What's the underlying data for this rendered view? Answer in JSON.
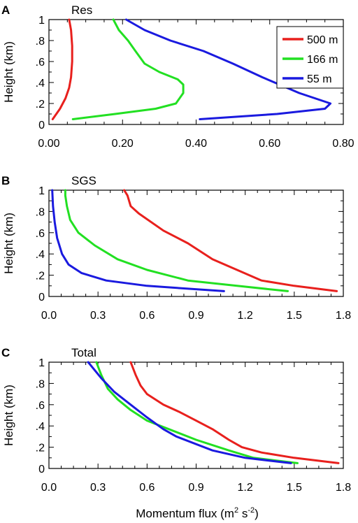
{
  "colors": {
    "500 m": "#e8201d",
    "166 m": "#22e022",
    "55 m": "#1a1adf"
  },
  "xlabel": "Momentum flux (m",
  "xlabel_sup1": "2",
  "xlabel_mid": " s",
  "xlabel_sup2": "-2",
  "xlabel_end": ")",
  "chart_data": [
    {
      "type": "line",
      "panel_letter": "A",
      "title": "Res",
      "ylabel": "Height (km)",
      "xlim": [
        0,
        0.8
      ],
      "ylim": [
        0,
        1
      ],
      "xticks": [
        "0.00",
        "0.20",
        "0.40",
        "0.60",
        "0.80"
      ],
      "xtick_values": [
        0,
        0.2,
        0.4,
        0.6,
        0.8
      ],
      "yticks": [
        "0",
        ".2",
        ".4",
        ".6",
        ".8",
        "1"
      ],
      "ytick_values": [
        0,
        0.2,
        0.4,
        0.6,
        0.8,
        1
      ],
      "legend": {
        "position": "top-right",
        "entries": [
          "500 m",
          "166 m",
          "55 m"
        ]
      },
      "series": [
        {
          "name": "500 m",
          "points": [
            [
              0.01,
              0.05
            ],
            [
              0.03,
              0.15
            ],
            [
              0.045,
              0.25
            ],
            [
              0.055,
              0.35
            ],
            [
              0.06,
              0.45
            ],
            [
              0.063,
              0.6
            ],
            [
              0.063,
              0.75
            ],
            [
              0.06,
              0.9
            ],
            [
              0.055,
              1.0
            ]
          ]
        },
        {
          "name": "166 m",
          "points": [
            [
              0.065,
              0.05
            ],
            [
              0.18,
              0.1
            ],
            [
              0.29,
              0.15
            ],
            [
              0.345,
              0.2
            ],
            [
              0.365,
              0.3
            ],
            [
              0.365,
              0.38
            ],
            [
              0.35,
              0.43
            ],
            [
              0.3,
              0.5
            ],
            [
              0.26,
              0.58
            ],
            [
              0.235,
              0.7
            ],
            [
              0.215,
              0.8
            ],
            [
              0.19,
              0.9
            ],
            [
              0.175,
              1.0
            ]
          ]
        },
        {
          "name": "55 m",
          "points": [
            [
              0.41,
              0.05
            ],
            [
              0.62,
              0.1
            ],
            [
              0.75,
              0.15
            ],
            [
              0.765,
              0.2
            ],
            [
              0.68,
              0.3
            ],
            [
              0.58,
              0.45
            ],
            [
              0.5,
              0.58
            ],
            [
              0.42,
              0.7
            ],
            [
              0.33,
              0.8
            ],
            [
              0.26,
              0.9
            ],
            [
              0.21,
              1.0
            ]
          ]
        }
      ]
    },
    {
      "type": "line",
      "panel_letter": "B",
      "title": "SGS",
      "ylabel": "Height (km)",
      "xlim": [
        0,
        1.8
      ],
      "ylim": [
        0,
        1
      ],
      "xticks": [
        "0.0",
        "0.3",
        "0.6",
        "0.9",
        "1.2",
        "1.5",
        "1.8"
      ],
      "xtick_values": [
        0,
        0.3,
        0.6,
        0.9,
        1.2,
        1.5,
        1.8
      ],
      "yticks": [
        "0",
        ".2",
        ".4",
        ".6",
        ".8",
        "1"
      ],
      "ytick_values": [
        0,
        0.2,
        0.4,
        0.6,
        0.8,
        1
      ],
      "series": [
        {
          "name": "500 m",
          "points": [
            [
              1.76,
              0.05
            ],
            [
              1.5,
              0.1
            ],
            [
              1.3,
              0.15
            ],
            [
              1.15,
              0.25
            ],
            [
              1.0,
              0.35
            ],
            [
              0.85,
              0.5
            ],
            [
              0.7,
              0.62
            ],
            [
              0.55,
              0.78
            ],
            [
              0.5,
              0.85
            ],
            [
              0.48,
              0.95
            ],
            [
              0.46,
              1.0
            ]
          ]
        },
        {
          "name": "166 m",
          "points": [
            [
              1.46,
              0.05
            ],
            [
              1.15,
              0.1
            ],
            [
              0.85,
              0.15
            ],
            [
              0.6,
              0.25
            ],
            [
              0.42,
              0.35
            ],
            [
              0.28,
              0.48
            ],
            [
              0.18,
              0.6
            ],
            [
              0.13,
              0.72
            ],
            [
              0.11,
              0.85
            ],
            [
              0.1,
              0.95
            ],
            [
              0.1,
              1.0
            ]
          ]
        },
        {
          "name": "55 m",
          "points": [
            [
              1.07,
              0.05
            ],
            [
              0.6,
              0.1
            ],
            [
              0.35,
              0.15
            ],
            [
              0.2,
              0.22
            ],
            [
              0.12,
              0.3
            ],
            [
              0.08,
              0.4
            ],
            [
              0.05,
              0.55
            ],
            [
              0.035,
              0.7
            ],
            [
              0.025,
              0.85
            ],
            [
              0.02,
              1.0
            ]
          ]
        }
      ]
    },
    {
      "type": "line",
      "panel_letter": "C",
      "title": "Total",
      "ylabel": "Height (km)",
      "xlim": [
        0,
        1.8
      ],
      "ylim": [
        0,
        1
      ],
      "xticks": [
        "0.0",
        "0.3",
        "0.6",
        "0.9",
        "1.2",
        "1.5",
        "1.8"
      ],
      "xtick_values": [
        0,
        0.3,
        0.6,
        0.9,
        1.2,
        1.5,
        1.8
      ],
      "yticks": [
        "0",
        ".2",
        ".4",
        ".6",
        ".8",
        "1"
      ],
      "ytick_values": [
        0,
        0.2,
        0.4,
        0.6,
        0.8,
        1
      ],
      "series": [
        {
          "name": "500 m",
          "points": [
            [
              1.77,
              0.05
            ],
            [
              1.5,
              0.1
            ],
            [
              1.3,
              0.15
            ],
            [
              1.18,
              0.2
            ],
            [
              1.1,
              0.27
            ],
            [
              1.0,
              0.37
            ],
            [
              0.9,
              0.45
            ],
            [
              0.8,
              0.53
            ],
            [
              0.7,
              0.6
            ],
            [
              0.6,
              0.7
            ],
            [
              0.56,
              0.78
            ],
            [
              0.53,
              0.88
            ],
            [
              0.5,
              1.0
            ]
          ]
        },
        {
          "name": "166 m",
          "points": [
            [
              1.52,
              0.05
            ],
            [
              1.25,
              0.1
            ],
            [
              1.1,
              0.17
            ],
            [
              0.9,
              0.27
            ],
            [
              0.75,
              0.36
            ],
            [
              0.6,
              0.45
            ],
            [
              0.5,
              0.55
            ],
            [
              0.42,
              0.65
            ],
            [
              0.36,
              0.75
            ],
            [
              0.32,
              0.88
            ],
            [
              0.29,
              1.0
            ]
          ]
        },
        {
          "name": "55 m",
          "points": [
            [
              1.48,
              0.05
            ],
            [
              1.2,
              0.1
            ],
            [
              1.0,
              0.17
            ],
            [
              0.78,
              0.3
            ],
            [
              0.7,
              0.37
            ],
            [
              0.6,
              0.48
            ],
            [
              0.5,
              0.6
            ],
            [
              0.4,
              0.72
            ],
            [
              0.32,
              0.85
            ],
            [
              0.24,
              1.0
            ]
          ]
        }
      ]
    }
  ]
}
